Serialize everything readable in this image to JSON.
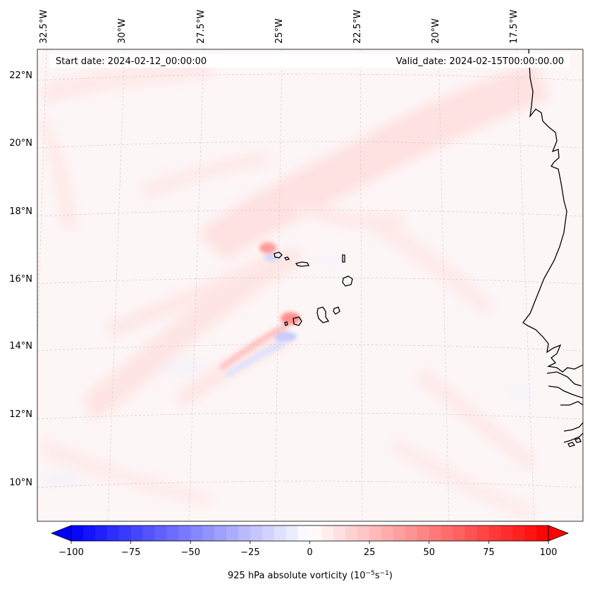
{
  "map": {
    "start_date": "Start date: 2024-02-12_00:00:00",
    "valid_date": "Valid_date: 2024-02-15T00:00:00.00",
    "lon_labels": [
      "32.5°W",
      "30°W",
      "27.5°W",
      "25°W",
      "22.5°W",
      "20°W",
      "17.5°W"
    ],
    "lat_labels": [
      "22°N",
      "20°N",
      "18°N",
      "16°N",
      "14°N",
      "12°N",
      "10°N"
    ]
  },
  "colorbar": {
    "min": -100,
    "max": 100,
    "levels": 40,
    "tick_values": [
      -100,
      -75,
      -50,
      -25,
      0,
      25,
      50,
      75,
      100
    ],
    "tick_labels": [
      "−100",
      "−75",
      "−50",
      "−25",
      "0",
      "25",
      "50",
      "75",
      "100"
    ],
    "label": "925 hPa absolute vorticity (10",
    "label_exp1": "−5",
    "label_mid": "s",
    "label_exp2": "−1",
    "label_end": ")",
    "colors": {
      "negative": "#0000ff",
      "zero": "#ffffff",
      "positive": "#ff0000"
    }
  },
  "chart_data": {
    "type": "heatmap",
    "variable": "925 hPa absolute vorticity",
    "units": "1e-5 s^-1",
    "value_range": [
      -100,
      100
    ],
    "lon_ticks": [
      -32.5,
      -30,
      -27.5,
      -25,
      -22.5,
      -20,
      -17.5
    ],
    "lat_ticks": [
      22,
      20,
      18,
      16,
      14,
      12,
      10
    ],
    "features": [
      {
        "name": "vorticity maximum NW of Santo Antao",
        "lon": -25.2,
        "lat": 17.0,
        "value": 40
      },
      {
        "name": "vorticity maximum near Fogo",
        "lon": -24.5,
        "lat": 14.9,
        "value": 45
      },
      {
        "name": "negative lee vorticity near Fogo",
        "lon": -24.6,
        "lat": 14.5,
        "value": -20
      }
    ]
  }
}
